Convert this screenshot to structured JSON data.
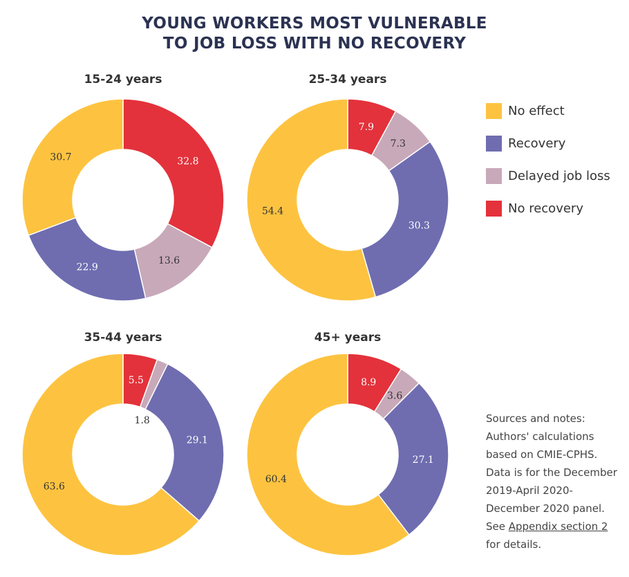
{
  "title_line1": "YOUNG WORKERS MOST VULNERABLE",
  "title_line2": "TO JOB LOSS WITH NO RECOVERY",
  "legend": [
    {
      "label": "No effect",
      "color": "#fdc340"
    },
    {
      "label": "Recovery",
      "color": "#6f6db0"
    },
    {
      "label": "Delayed job loss",
      "color": "#c8a9b9"
    },
    {
      "label": "No recovery",
      "color": "#e3323b"
    }
  ],
  "note": {
    "text_before": "Sources and notes: Authors' calculations based on CMIE-CPHS. Data is for the December 2019-April 2020-December 2020 panel. See ",
    "link_text": "Appendix section 2",
    "text_after": " for details."
  },
  "chart_data": [
    {
      "type": "pie",
      "title": "15-24 years",
      "categories": [
        "No recovery",
        "Delayed job loss",
        "Recovery",
        "No effect"
      ],
      "values": [
        32.8,
        13.6,
        22.9,
        30.7
      ],
      "labels": [
        "32.8",
        "13.6",
        "22.9",
        "30.7"
      ]
    },
    {
      "type": "pie",
      "title": "25-34 years",
      "categories": [
        "No recovery",
        "Delayed job loss",
        "Recovery",
        "No effect"
      ],
      "values": [
        7.9,
        7.3,
        30.3,
        54.4
      ],
      "labels": [
        "7.9",
        "7.3",
        "30.3",
        "54.4"
      ]
    },
    {
      "type": "pie",
      "title": "35-44 years",
      "categories": [
        "No recovery",
        "Delayed job loss",
        "Recovery",
        "No effect"
      ],
      "values": [
        5.5,
        1.8,
        29.1,
        63.6
      ],
      "labels": [
        "5.5",
        "1.8",
        "29.1",
        "63.6"
      ]
    },
    {
      "type": "pie",
      "title": "45+ years",
      "categories": [
        "No recovery",
        "Delayed job loss",
        "Recovery",
        "No effect"
      ],
      "values": [
        8.9,
        3.6,
        27.1,
        60.4
      ],
      "labels": [
        "8.9",
        "3.6",
        "27.1",
        "60.4"
      ]
    }
  ]
}
